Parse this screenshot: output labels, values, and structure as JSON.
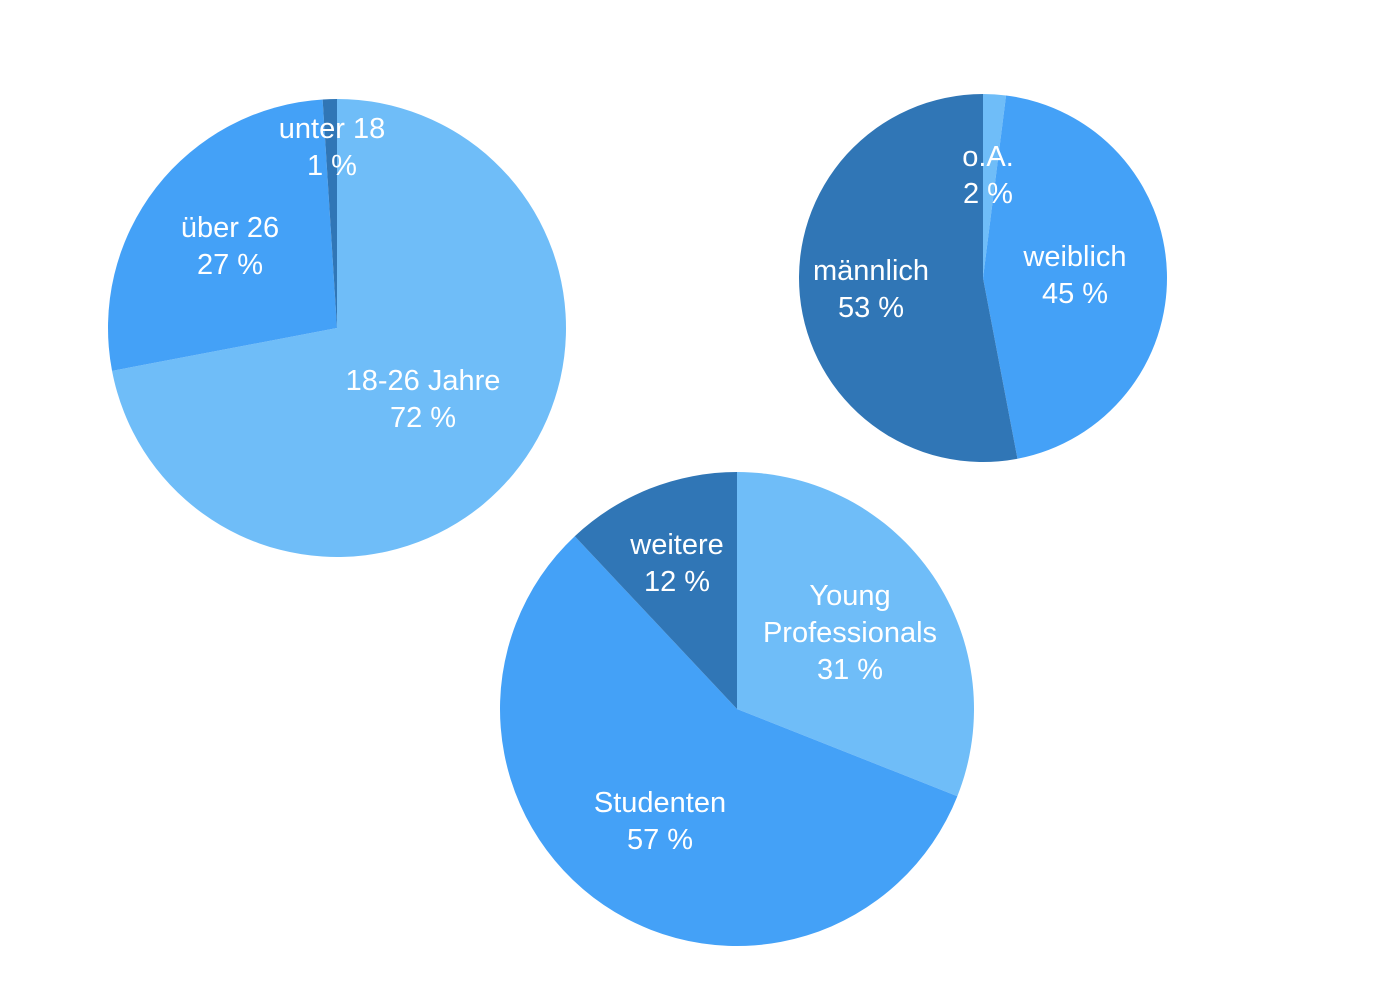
{
  "chart_data": [
    {
      "type": "pie",
      "slices": [
        {
          "label": "18-26 Jahre",
          "value": 72,
          "value_text": "72 %",
          "color": "#6FBDF8"
        },
        {
          "label": "über 26",
          "value": 27,
          "value_text": "27 %",
          "color": "#44A1F7"
        },
        {
          "label": "unter 18",
          "value": 1,
          "value_text": "1 %",
          "color": "#3076B6"
        }
      ]
    },
    {
      "type": "pie",
      "slices": [
        {
          "label": "o.A.",
          "value": 2,
          "value_text": "2 %",
          "color": "#6FBDF8"
        },
        {
          "label": "weiblich",
          "value": 45,
          "value_text": "45 %",
          "color": "#44A1F7"
        },
        {
          "label": "männlich",
          "value": 53,
          "value_text": "53 %",
          "color": "#3076B6"
        }
      ]
    },
    {
      "type": "pie",
      "slices": [
        {
          "label": "Young Professionals",
          "label_lines": [
            "Young",
            "Professionals"
          ],
          "value": 31,
          "value_text": "31 %",
          "color": "#6FBDF8"
        },
        {
          "label": "Studenten",
          "value": 57,
          "value_text": "57 %",
          "color": "#44A1F7"
        },
        {
          "label": "weitere",
          "value": 12,
          "value_text": "12 %",
          "color": "#3076B6"
        }
      ]
    }
  ]
}
